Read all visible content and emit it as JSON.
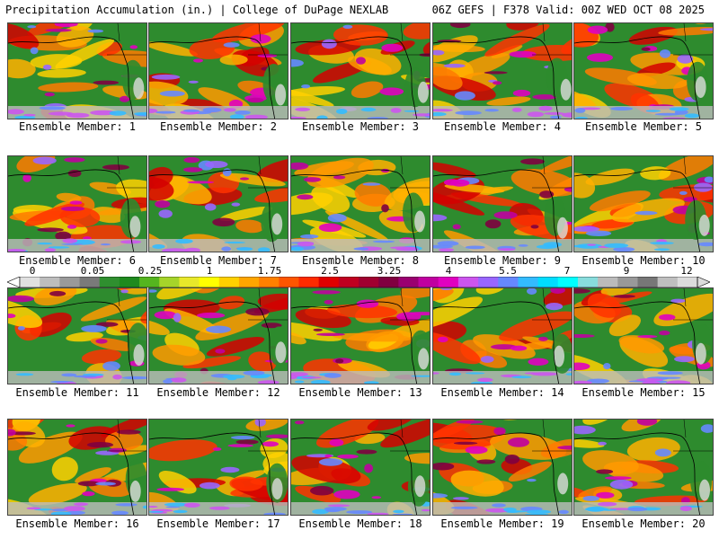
{
  "header": {
    "title_left": "Precipitation Accumulation (in.) | College of DuPage NEXLAB",
    "title_right": "06Z GEFS | F378 Valid: 00Z WED OCT 08 2025"
  },
  "panels": [
    {
      "label": "Ensemble Member: 1"
    },
    {
      "label": "Ensemble Member: 2"
    },
    {
      "label": "Ensemble Member: 3"
    },
    {
      "label": "Ensemble Member: 4"
    },
    {
      "label": "Ensemble Member: 5"
    },
    {
      "label": "Ensemble Member: 6"
    },
    {
      "label": "Ensemble Member: 7"
    },
    {
      "label": "Ensemble Member: 8"
    },
    {
      "label": "Ensemble Member: 9"
    },
    {
      "label": "Ensemble Member: 10"
    },
    {
      "label": "Ensemble Member: 11"
    },
    {
      "label": "Ensemble Member: 12"
    },
    {
      "label": "Ensemble Member: 13"
    },
    {
      "label": "Ensemble Member: 14"
    },
    {
      "label": "Ensemble Member: 15"
    },
    {
      "label": "Ensemble Member: 16"
    },
    {
      "label": "Ensemble Member: 17"
    },
    {
      "label": "Ensemble Member: 18"
    },
    {
      "label": "Ensemble Member: 19"
    },
    {
      "label": "Ensemble Member: 20"
    }
  ],
  "legend": {
    "tick_labels": [
      "0",
      "0.05",
      "0.25",
      "1",
      "1.75",
      "2.5",
      "3.25",
      "4",
      "5.5",
      "7",
      "9",
      "12"
    ],
    "colors": [
      "#e0e0e0",
      "#bdbdbd",
      "#9a9a9a",
      "#7a7a7a",
      "#2f8f2f",
      "#1e8a1e",
      "#55b51f",
      "#a6d42a",
      "#e8e82a",
      "#ffff00",
      "#ffd000",
      "#ffa500",
      "#ff8000",
      "#ff5500",
      "#ff2a00",
      "#e00000",
      "#c00020",
      "#a00030",
      "#800040",
      "#9a0070",
      "#c000a0",
      "#e000c0",
      "#cc55ee",
      "#9966ff",
      "#6688ff",
      "#33bbff",
      "#00ddff",
      "#00ffff",
      "#88dddd",
      "#bbbbbb",
      "#999999",
      "#777777",
      "#bfbfbf",
      "#dcdcdc"
    ]
  }
}
